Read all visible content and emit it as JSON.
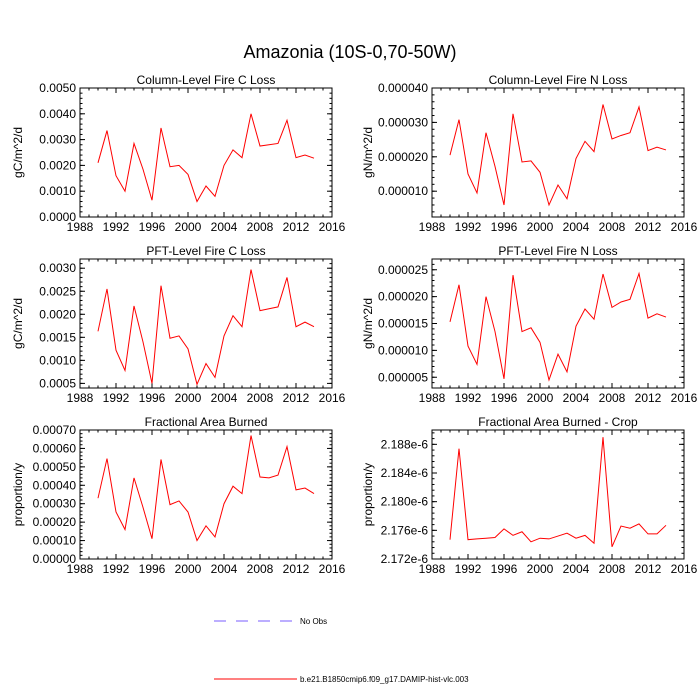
{
  "figure": {
    "title": "Amazonia (10S-0,70-50W)"
  },
  "colors": {
    "series": "#ff0000",
    "obs": "#7a5cff"
  },
  "legend": {
    "items": [
      {
        "label": "No Obs",
        "style": "dashed",
        "color": "#7a5cff"
      },
      {
        "label": "b.e21.B1850cmip6.f09_g17.DAMIP-hist-vlc.003",
        "style": "solid",
        "color": "#ff0000"
      }
    ]
  },
  "chart_data": [
    {
      "type": "line",
      "title": "Column-Level Fire C Loss",
      "ylabel": "gC/m^2/d",
      "xlim": [
        1988,
        2016
      ],
      "ylim": [
        0.0,
        0.005
      ],
      "xticks": [
        "1988",
        "1992",
        "1996",
        "2000",
        "2004",
        "2008",
        "2012",
        "2016"
      ],
      "yticks": [
        "0.0000",
        "0.0010",
        "0.0020",
        "0.0030",
        "0.0040",
        "0.0050"
      ],
      "ytick_values": [
        0.0,
        0.001,
        0.002,
        0.003,
        0.004,
        0.005
      ],
      "x": [
        1990,
        1991,
        1992,
        1993,
        1994,
        1995,
        1996,
        1997,
        1998,
        1999,
        2000,
        2001,
        2002,
        2003,
        2004,
        2005,
        2006,
        2007,
        2008,
        2009,
        2010,
        2011,
        2012,
        2013,
        2014
      ],
      "series": [
        {
          "values": [
            0.0021,
            0.00335,
            0.0016,
            0.001,
            0.00285,
            0.00185,
            0.00065,
            0.00345,
            0.00195,
            0.002,
            0.00165,
            0.0006,
            0.0012,
            0.0008,
            0.002,
            0.0026,
            0.0023,
            0.004,
            0.00275,
            0.0028,
            0.00285,
            0.00375,
            0.0023,
            0.0024,
            0.00228
          ]
        }
      ]
    },
    {
      "type": "line",
      "title": "Column-Level Fire N Loss",
      "ylabel": "gN/m^2/d",
      "xlim": [
        1988,
        2016
      ],
      "ylim": [
        2.5e-06,
        4e-05
      ],
      "xticks": [
        "1988",
        "1992",
        "1996",
        "2000",
        "2004",
        "2008",
        "2012",
        "2016"
      ],
      "yticks": [
        "0.000010",
        "0.000020",
        "0.000030",
        "0.000040"
      ],
      "ytick_values": [
        1e-05,
        2e-05,
        3e-05,
        4e-05
      ],
      "x": [
        1990,
        1991,
        1992,
        1993,
        1994,
        1995,
        1996,
        1997,
        1998,
        1999,
        2000,
        2001,
        2002,
        2003,
        2004,
        2005,
        2006,
        2007,
        2008,
        2009,
        2010,
        2011,
        2012,
        2013,
        2014
      ],
      "series": [
        {
          "values": [
            2.05e-05,
            3.08e-05,
            1.5e-05,
            9.5e-06,
            2.7e-05,
            1.72e-05,
            6e-06,
            3.25e-05,
            1.85e-05,
            1.88e-05,
            1.55e-05,
            6e-06,
            1.18e-05,
            7.8e-06,
            1.95e-05,
            2.45e-05,
            2.15e-05,
            3.52e-05,
            2.52e-05,
            2.62e-05,
            2.7e-05,
            3.45e-05,
            2.18e-05,
            2.28e-05,
            2.2e-05
          ]
        }
      ]
    },
    {
      "type": "line",
      "title": "PFT-Level Fire C Loss",
      "ylabel": "gC/m^2/d",
      "xlim": [
        1988,
        2016
      ],
      "ylim": [
        0.0004,
        0.0032
      ],
      "xticks": [
        "1988",
        "1992",
        "1996",
        "2000",
        "2004",
        "2008",
        "2012",
        "2016"
      ],
      "yticks": [
        "0.0005",
        "0.0010",
        "0.0015",
        "0.0020",
        "0.0025",
        "0.0030"
      ],
      "ytick_values": [
        0.0005,
        0.001,
        0.0015,
        0.002,
        0.0025,
        0.003
      ],
      "x": [
        1990,
        1991,
        1992,
        1993,
        1994,
        1995,
        1996,
        1997,
        1998,
        1999,
        2000,
        2001,
        2002,
        2003,
        2004,
        2005,
        2006,
        2007,
        2008,
        2009,
        2010,
        2011,
        2012,
        2013,
        2014
      ],
      "series": [
        {
          "values": [
            0.00163,
            0.00255,
            0.00122,
            0.00078,
            0.00218,
            0.0014,
            0.0005,
            0.00262,
            0.00148,
            0.00153,
            0.00125,
            0.00048,
            0.00093,
            0.00063,
            0.00153,
            0.00197,
            0.00173,
            0.00297,
            0.00208,
            0.00212,
            0.00216,
            0.0028,
            0.00173,
            0.00183,
            0.00173
          ]
        }
      ]
    },
    {
      "type": "line",
      "title": "PFT-Level Fire N Loss",
      "ylabel": "gN/m^2/d",
      "xlim": [
        1988,
        2016
      ],
      "ylim": [
        3e-06,
        2.7e-05
      ],
      "xticks": [
        "1988",
        "1992",
        "1996",
        "2000",
        "2004",
        "2008",
        "2012",
        "2016"
      ],
      "yticks": [
        "0.000005",
        "0.000010",
        "0.000015",
        "0.000020",
        "0.000025"
      ],
      "ytick_values": [
        5e-06,
        1e-05,
        1.5e-05,
        2e-05,
        2.5e-05
      ],
      "x": [
        1990,
        1991,
        1992,
        1993,
        1994,
        1995,
        1996,
        1997,
        1998,
        1999,
        2000,
        2001,
        2002,
        2003,
        2004,
        2005,
        2006,
        2007,
        2008,
        2009,
        2010,
        2011,
        2012,
        2013,
        2014
      ],
      "series": [
        {
          "values": [
            1.53e-05,
            2.22e-05,
            1.08e-05,
            7.4e-06,
            2e-05,
            1.35e-05,
            4.7e-06,
            2.4e-05,
            1.35e-05,
            1.42e-05,
            1.15e-05,
            4.5e-06,
            9.3e-06,
            6e-06,
            1.45e-05,
            1.77e-05,
            1.58e-05,
            2.42e-05,
            1.8e-05,
            1.9e-05,
            1.95e-05,
            2.43e-05,
            1.6e-05,
            1.68e-05,
            1.62e-05
          ]
        }
      ]
    },
    {
      "type": "line",
      "title": "Fractional Area Burned",
      "ylabel": "proportion/y",
      "xlim": [
        1988,
        2016
      ],
      "ylim": [
        0.0,
        0.0007
      ],
      "xticks": [
        "1988",
        "1992",
        "1996",
        "2000",
        "2004",
        "2008",
        "2012",
        "2016"
      ],
      "yticks": [
        "0.00000",
        "0.00010",
        "0.00020",
        "0.00030",
        "0.00040",
        "0.00050",
        "0.00060",
        "0.00070"
      ],
      "ytick_values": [
        0.0,
        0.0001,
        0.0002,
        0.0003,
        0.0004,
        0.0005,
        0.0006,
        0.0007
      ],
      "x": [
        1990,
        1991,
        1992,
        1993,
        1994,
        1995,
        1996,
        1997,
        1998,
        1999,
        2000,
        2001,
        2002,
        2003,
        2004,
        2005,
        2006,
        2007,
        2008,
        2009,
        2010,
        2011,
        2012,
        2013,
        2014
      ],
      "series": [
        {
          "values": [
            0.00033,
            0.000545,
            0.000255,
            0.00016,
            0.00044,
            0.00028,
            0.00011,
            0.00054,
            0.000295,
            0.000315,
            0.000255,
            0.0001,
            0.00018,
            0.00012,
            0.0003,
            0.000395,
            0.000355,
            0.00067,
            0.000445,
            0.00044,
            0.000455,
            0.00061,
            0.000375,
            0.000385,
            0.000355
          ]
        }
      ]
    },
    {
      "type": "line",
      "title": "Fractional Area Burned - Crop",
      "ylabel": "proportion/y",
      "xlim": [
        1988,
        2016
      ],
      "ylim": [
        2.172e-06,
        2.19e-06
      ],
      "xticks": [
        "1988",
        "1992",
        "1996",
        "2000",
        "2004",
        "2008",
        "2012",
        "2016"
      ],
      "yticks": [
        "2.172e-6",
        "2.176e-6",
        "2.180e-6",
        "2.184e-6",
        "2.188e-6"
      ],
      "ytick_values": [
        2.172e-06,
        2.176e-06,
        2.18e-06,
        2.184e-06,
        2.188e-06
      ],
      "x": [
        1990,
        1991,
        1992,
        1993,
        1994,
        1995,
        1996,
        1997,
        1998,
        1999,
        2000,
        2001,
        2002,
        2003,
        2004,
        2005,
        2006,
        2007,
        2008,
        2009,
        2010,
        2011,
        2012,
        2013,
        2014
      ],
      "series": [
        {
          "values": [
            2.1747e-06,
            2.1874e-06,
            2.1747e-06,
            2.1748e-06,
            2.1749e-06,
            2.175e-06,
            2.1762e-06,
            2.1753e-06,
            2.1758e-06,
            2.1744e-06,
            2.1749e-06,
            2.1748e-06,
            2.1752e-06,
            2.1756e-06,
            2.1749e-06,
            2.1753e-06,
            2.1742e-06,
            2.189e-06,
            2.1737e-06,
            2.1766e-06,
            2.1763e-06,
            2.1769e-06,
            2.1755e-06,
            2.1755e-06,
            2.1767e-06
          ]
        }
      ]
    }
  ]
}
